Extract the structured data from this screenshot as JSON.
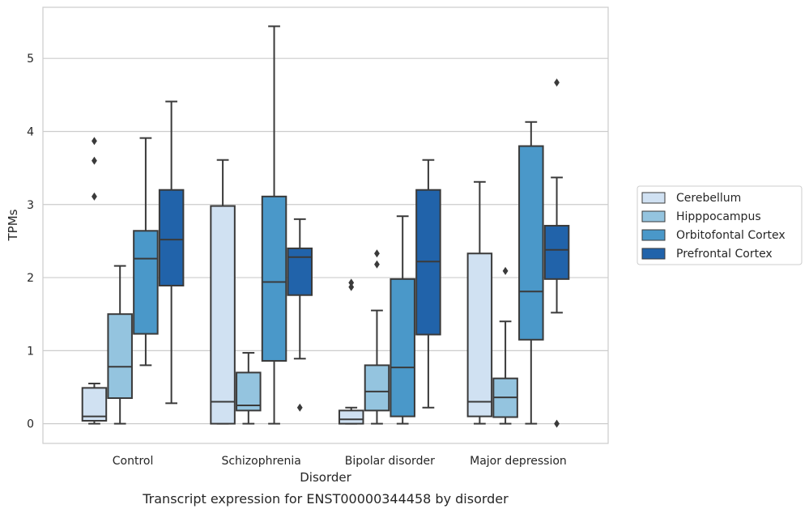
{
  "chart_data": {
    "type": "box",
    "xlabel": "Disorder",
    "ylabel": "TPMs",
    "caption": "Transcript expression for ENST00000344458 by disorder",
    "ylim": [
      -0.27,
      5.7
    ],
    "yticks": [
      0,
      1,
      2,
      3,
      4,
      5
    ],
    "grid": true,
    "legend_position": "right",
    "categories": [
      "Control",
      "Schizophrenia",
      "Bipolar disorder",
      "Major depression"
    ],
    "series": [
      {
        "name": "Cerebellum",
        "color": "#d0e1f2",
        "boxes": [
          {
            "whisker_low": 0.0,
            "q1": 0.04,
            "median": 0.1,
            "q3": 0.49,
            "whisker_high": 0.55,
            "outliers": [
              3.11,
              3.6,
              3.87
            ]
          },
          {
            "whisker_low": 0.0,
            "q1": 0.0,
            "median": 0.3,
            "q3": 2.98,
            "whisker_high": 3.61,
            "outliers": []
          },
          {
            "whisker_low": 0.0,
            "q1": 0.0,
            "median": 0.06,
            "q3": 0.18,
            "whisker_high": 0.22,
            "outliers": [
              1.87,
              1.93
            ]
          },
          {
            "whisker_low": 0.0,
            "q1": 0.1,
            "median": 0.3,
            "q3": 2.33,
            "whisker_high": 3.31,
            "outliers": []
          }
        ]
      },
      {
        "name": "Hipppocampus",
        "color": "#94c4df",
        "boxes": [
          {
            "whisker_low": 0.0,
            "q1": 0.35,
            "median": 0.78,
            "q3": 1.5,
            "whisker_high": 2.16,
            "outliers": []
          },
          {
            "whisker_low": 0.0,
            "q1": 0.18,
            "median": 0.25,
            "q3": 0.7,
            "whisker_high": 0.97,
            "outliers": []
          },
          {
            "whisker_low": 0.0,
            "q1": 0.18,
            "median": 0.44,
            "q3": 0.8,
            "whisker_high": 1.55,
            "outliers": [
              2.18,
              2.33
            ]
          },
          {
            "whisker_low": 0.0,
            "q1": 0.09,
            "median": 0.36,
            "q3": 0.62,
            "whisker_high": 1.4,
            "outliers": [
              2.09
            ]
          }
        ]
      },
      {
        "name": "Orbitofontal Cortex",
        "color": "#4a98c9",
        "boxes": [
          {
            "whisker_low": 0.8,
            "q1": 1.23,
            "median": 2.26,
            "q3": 2.64,
            "whisker_high": 3.91,
            "outliers": []
          },
          {
            "whisker_low": 0.0,
            "q1": 0.86,
            "median": 1.94,
            "q3": 3.11,
            "whisker_high": 5.44,
            "outliers": []
          },
          {
            "whisker_low": 0.0,
            "q1": 0.1,
            "median": 0.77,
            "q3": 1.98,
            "whisker_high": 2.84,
            "outliers": []
          },
          {
            "whisker_low": 0.0,
            "q1": 1.15,
            "median": 1.81,
            "q3": 3.8,
            "whisker_high": 4.13,
            "outliers": []
          }
        ]
      },
      {
        "name": "Prefrontal Cortex",
        "color": "#2163aa",
        "boxes": [
          {
            "whisker_low": 0.28,
            "q1": 1.89,
            "median": 2.52,
            "q3": 3.2,
            "whisker_high": 4.41,
            "outliers": []
          },
          {
            "whisker_low": 0.89,
            "q1": 1.76,
            "median": 2.28,
            "q3": 2.4,
            "whisker_high": 2.8,
            "outliers": [
              0.22
            ]
          },
          {
            "whisker_low": 0.22,
            "q1": 1.22,
            "median": 2.22,
            "q3": 3.2,
            "whisker_high": 3.61,
            "outliers": []
          },
          {
            "whisker_low": 1.52,
            "q1": 1.98,
            "median": 2.38,
            "q3": 2.71,
            "whisker_high": 3.37,
            "outliers": [
              0.0,
              4.67
            ]
          }
        ]
      }
    ]
  }
}
